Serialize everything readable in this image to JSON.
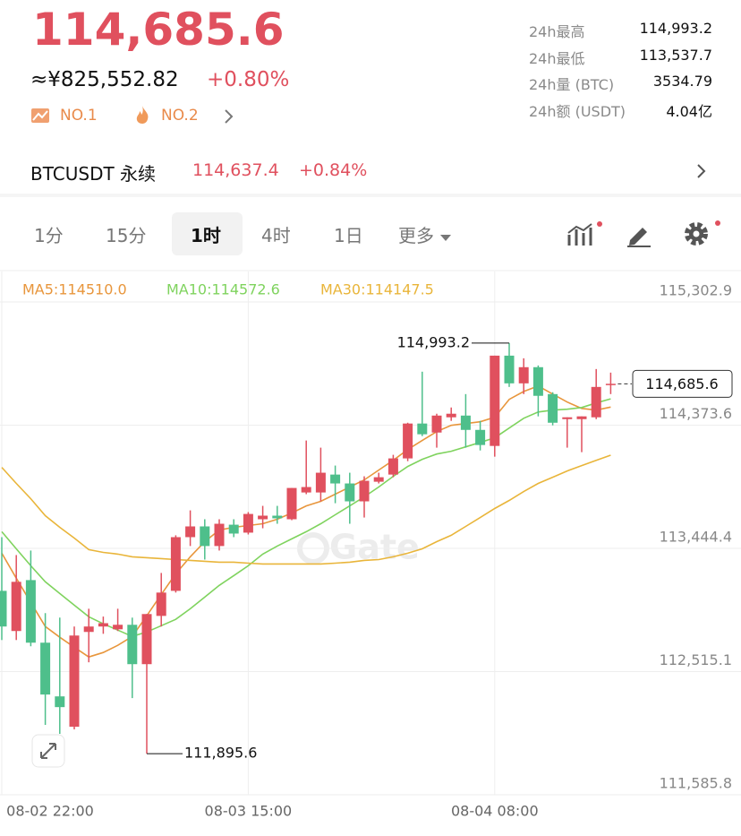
{
  "header": {
    "price": "114,685.6",
    "cny": "≈¥825,552.82",
    "change": "+0.80%",
    "badges": [
      "NO.1",
      "NO.2"
    ],
    "stats": [
      [
        "24h最高",
        "114,993.2"
      ],
      [
        "24h最低",
        "113,537.7"
      ],
      [
        "24h量 (BTC)",
        "3534.79"
      ],
      [
        "24h额 (USDT)",
        "4.04亿"
      ]
    ]
  },
  "contract": {
    "name": "BTCUSDT 永续",
    "price": "114,637.4",
    "change": "+0.84%"
  },
  "tabs": {
    "items": [
      "1分",
      "15分",
      "1时",
      "4时",
      "1日",
      "更多"
    ],
    "selected": 2
  },
  "chart_data": {
    "type": "candlestick",
    "watermark": "Gate",
    "up_color": "#e0505e",
    "down_color": "#4ebf8b",
    "categories": [
      "08-02 22:00",
      null,
      null,
      null,
      null,
      null,
      null,
      null,
      null,
      null,
      null,
      null,
      null,
      null,
      null,
      null,
      null,
      "08-03 15:00",
      null,
      null,
      null,
      null,
      null,
      null,
      null,
      null,
      null,
      null,
      null,
      null,
      null,
      null,
      null,
      null,
      "08-04 08:00",
      null,
      null,
      null,
      null,
      null,
      null,
      null,
      null
    ],
    "open": [
      113124,
      112821,
      113205,
      112733,
      112328,
      112099,
      112814,
      112855,
      112834,
      112868,
      112571,
      112935,
      113124,
      113529,
      113610,
      113462,
      113623,
      113563,
      113664,
      113691,
      113664,
      113866,
      113866,
      114001,
      113934,
      113799,
      113947,
      114001,
      114123,
      114386,
      114318,
      114433,
      114446,
      114338,
      114217,
      114898,
      114689,
      114811,
      114608,
      114419,
      114419,
      114433,
      114676
    ],
    "high": [
      113529,
      113394,
      113428,
      112956,
      112922,
      112855,
      112989,
      112930,
      112989,
      112922,
      112949,
      113259,
      113543,
      113731,
      113664,
      113664,
      113664,
      113718,
      113765,
      113765,
      113900,
      114258,
      114204,
      114069,
      114015,
      113988,
      114015,
      114150,
      114392,
      114777,
      114460,
      114507,
      114608,
      114406,
      114898,
      114993.2,
      114878,
      114824,
      114622,
      114433,
      114440,
      114797,
      114770
    ],
    "low": [
      112753,
      112753,
      112706,
      112113,
      112045,
      112079,
      112585,
      112800,
      112821,
      112315,
      111895.6,
      112855,
      113111,
      113462,
      113360,
      113428,
      113529,
      113549,
      113596,
      113630,
      113657,
      113853,
      113799,
      113785,
      113630,
      113677,
      113934,
      113981,
      114102,
      114291,
      114204,
      114406,
      114204,
      114183,
      114136,
      114662,
      114608,
      114440,
      114372,
      114204,
      114170,
      114419,
      114608
    ],
    "close": [
      112855,
      113192,
      112733,
      112342,
      112247,
      112787,
      112855,
      112880,
      112868,
      112571,
      112949,
      113111,
      113529,
      113610,
      113462,
      113630,
      113556,
      113704,
      113691,
      113671,
      113900,
      113907,
      114015,
      113934,
      113799,
      113954,
      113981,
      114123,
      114386,
      114305,
      114446,
      114460,
      114338,
      114224,
      114898,
      114689,
      114811,
      114595,
      114392,
      114433,
      114440,
      114662,
      114685.6
    ],
    "lines": [
      {
        "name": "MA5:114510.0",
        "color": "#e8963c",
        "values": [
          113408,
          113219,
          113037,
          112855,
          112774,
          112699,
          112625,
          112659,
          112713,
          112780,
          112936,
          113097,
          113253,
          113381,
          113495,
          113583,
          113603,
          113617,
          113630,
          113664,
          113711,
          113765,
          113799,
          113853,
          113907,
          113961,
          114035,
          114109,
          114190,
          114258,
          114325,
          114372,
          114386,
          114399,
          114433,
          114568,
          114628,
          114669,
          114608,
          114548,
          114500,
          114487,
          114510
        ]
      },
      {
        "name": "MA10:114572.6",
        "color": "#7fd35e",
        "values": [
          113570,
          113441,
          113313,
          113192,
          113104,
          113016,
          112929,
          112875,
          112828,
          112780,
          112814,
          112861,
          112909,
          112989,
          113077,
          113165,
          113239,
          113313,
          113401,
          113462,
          113516,
          113570,
          113630,
          113698,
          113765,
          113833,
          113907,
          113988,
          114062,
          114116,
          114156,
          114177,
          114210,
          114244,
          114278,
          114352,
          114426,
          114473,
          114487,
          114494,
          114507,
          114541,
          114572.6
        ]
      },
      {
        "name": "MA30:114147.5",
        "color": "#e9b53a",
        "values": [
          114055,
          113934,
          113819,
          113691,
          113603,
          113522,
          113435,
          113414,
          113401,
          113381,
          113374,
          113367,
          113360,
          113354,
          113347,
          113340,
          113340,
          113333,
          113327,
          113327,
          113327,
          113327,
          113327,
          113333,
          113340,
          113354,
          113360,
          113381,
          113408,
          113441,
          113495,
          113543,
          113610,
          113677,
          113745,
          113806,
          113873,
          113934,
          113981,
          114028,
          114069,
          114109,
          114147.5
        ]
      }
    ],
    "ylim": [
      111585.8,
      115302.9
    ],
    "yticks": [
      {
        "value": 111585.8,
        "label": "111,585.8"
      },
      {
        "value": 112515.1,
        "label": "112,515.1"
      },
      {
        "value": 113444.4,
        "label": "113,444.4"
      },
      {
        "value": 114373.6,
        "label": "114,373.6"
      },
      {
        "value": 115302.9,
        "label": "115,302.9"
      }
    ],
    "grid": true,
    "annotations": {
      "high": {
        "value": 114993.2,
        "label": "114,993.2"
      },
      "low": {
        "value": 111895.6,
        "label": "111,895.6"
      },
      "last": {
        "value": 114685.6,
        "label": "114,685.6"
      }
    }
  }
}
